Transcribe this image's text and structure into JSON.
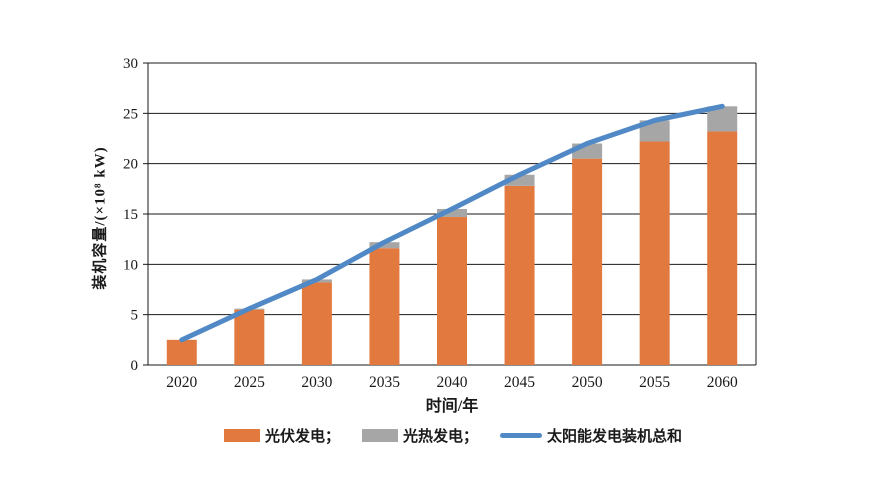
{
  "page": {
    "background": "#ffffff",
    "text_color": "#1a1a1a"
  },
  "chart_data": {
    "type": "bar",
    "subtype": "stacked-bars-with-total-line",
    "title": "",
    "xlabel": "时间/年",
    "ylabel": "装机容量/(×10⁸ kW)",
    "categories": [
      "2020",
      "2025",
      "2030",
      "2035",
      "2040",
      "2045",
      "2050",
      "2055",
      "2060"
    ],
    "series": [
      {
        "name": "光伏发电",
        "type": "bar",
        "color": "#E2793E",
        "values": [
          2.5,
          5.5,
          8.2,
          11.6,
          14.7,
          17.8,
          20.5,
          22.2,
          23.2
        ]
      },
      {
        "name": "光热发电",
        "type": "bar",
        "color": "#A6A6A6",
        "values": [
          0,
          0.1,
          0.3,
          0.6,
          0.8,
          1.1,
          1.5,
          2.1,
          2.5
        ]
      },
      {
        "name": "太阳能发电装机总和",
        "type": "line",
        "color": "#5089C5",
        "values": [
          2.5,
          5.6,
          8.5,
          12.2,
          15.5,
          18.9,
          22.0,
          24.3,
          25.7
        ]
      }
    ],
    "ylim": [
      0,
      30
    ],
    "yticks": [
      0,
      5,
      10,
      15,
      20,
      25,
      30
    ],
    "grid": "horizontal",
    "plot_border": true,
    "axis_color": "#1a1a1a",
    "text_color": "#1a1a1a",
    "legend_position": "bottom",
    "legend": [
      {
        "label": "光伏发电；",
        "marker": "bar",
        "color": "#E2793E"
      },
      {
        "label": "光热发电；",
        "marker": "bar",
        "color": "#A6A6A6"
      },
      {
        "label": "太阳能发电装机总和",
        "marker": "line",
        "color": "#5089C5"
      }
    ]
  }
}
